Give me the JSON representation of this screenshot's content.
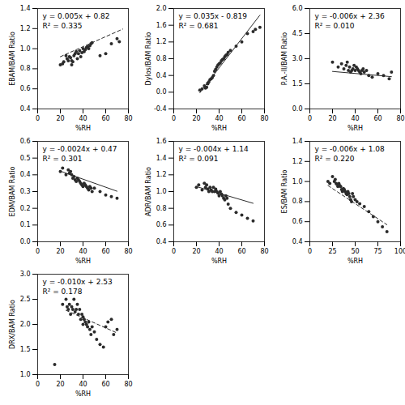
{
  "chart_data": [
    {
      "type": "scatter",
      "xlabel": "%RH",
      "ylabel": "EBAM/BAM Ratio",
      "grid": false,
      "annotations": [
        "y = 0.005x + 0.82",
        "R² = 0.335"
      ],
      "xlim": [
        0,
        80
      ],
      "ylim": [
        0.4,
        1.4
      ],
      "xticks": [
        0,
        20,
        40,
        60,
        80
      ],
      "yticks": [
        0.4,
        0.6,
        0.8,
        {
          "value": 1.0,
          "label": "1.0"
        },
        1.2,
        1.4
      ],
      "series": [
        {
          "type": "scatter",
          "color": "#2b2b2b",
          "marker": "circle",
          "x": [
            20,
            22,
            23,
            25,
            26,
            27,
            28,
            29,
            30,
            30,
            31,
            32,
            33,
            34,
            35,
            36,
            37,
            38,
            39,
            40,
            41,
            42,
            43,
            44,
            45,
            46,
            47,
            48,
            55,
            60,
            65,
            70,
            72
          ],
          "values": [
            0.84,
            0.85,
            0.87,
            0.93,
            0.9,
            0.88,
            0.92,
            0.91,
            0.88,
            0.84,
            0.87,
            0.93,
            0.95,
            0.97,
            0.9,
            0.95,
            0.98,
            0.92,
            0.96,
            1.0,
            0.97,
            0.99,
            1.01,
            1.02,
            1.0,
            1.03,
            1.05,
            1.06,
            0.93,
            0.95,
            1.05,
            1.1,
            1.07
          ]
        },
        {
          "type": "line",
          "color": "#2b2b2b",
          "line_style": "dashed",
          "x": [
            20,
            75
          ],
          "values": [
            0.92,
            1.195
          ]
        }
      ]
    },
    {
      "type": "scatter",
      "xlabel": "%RH",
      "ylabel": "Dylos/BAM Ratio",
      "grid": false,
      "annotations": [
        "y = 0.035x - 0.819",
        "R² = 0.681"
      ],
      "xlim": [
        0,
        80
      ],
      "ylim": [
        -0.4,
        2.0
      ],
      "xticks": [
        0,
        20,
        40,
        60,
        80
      ],
      "yticks": [
        -0.4,
        {
          "value": 0.0,
          "label": "0.0"
        },
        0.4,
        0.8,
        1.2,
        1.6,
        {
          "value": 2.0,
          "label": "2.0"
        }
      ],
      "series": [
        {
          "type": "scatter",
          "color": "#2b2b2b",
          "marker": "circle",
          "x": [
            23,
            25,
            27,
            28,
            29,
            30,
            30,
            31,
            32,
            33,
            34,
            35,
            36,
            37,
            38,
            39,
            40,
            41,
            42,
            43,
            44,
            45,
            46,
            47,
            48,
            50,
            55,
            60,
            65,
            70,
            72,
            76
          ],
          "values": [
            0.05,
            0.08,
            0.15,
            0.1,
            0.12,
            0.2,
            0.22,
            0.25,
            0.3,
            0.32,
            0.35,
            0.4,
            0.5,
            0.55,
            0.6,
            0.65,
            0.68,
            0.7,
            0.75,
            0.78,
            0.8,
            0.85,
            0.88,
            0.9,
            0.95,
            1.0,
            1.1,
            1.2,
            1.4,
            1.45,
            1.5,
            1.55
          ]
        },
        {
          "type": "line",
          "color": "#2b2b2b",
          "line_style": "solid",
          "x": [
            23,
            76
          ],
          "values": [
            -0.014,
            1.841
          ]
        }
      ]
    },
    {
      "type": "scatter",
      "xlabel": "%RH",
      "ylabel": "P.A.-II/BAM Ratio",
      "grid": false,
      "annotations": [
        "y = -0.006x + 2.36",
        "R² = 0.010"
      ],
      "xlim": [
        0,
        80
      ],
      "ylim": [
        0.0,
        6.0
      ],
      "xticks": [
        0,
        20,
        40,
        60,
        80
      ],
      "yticks": [
        {
          "value": 0.0,
          "label": "0.0"
        },
        1.5,
        {
          "value": 3.0,
          "label": "3.0"
        },
        4.5,
        {
          "value": 6.0,
          "label": "6.0"
        }
      ],
      "series": [
        {
          "type": "scatter",
          "color": "#2b2b2b",
          "marker": "circle",
          "x": [
            20,
            25,
            28,
            30,
            32,
            33,
            34,
            35,
            36,
            37,
            38,
            39,
            40,
            41,
            42,
            43,
            44,
            45,
            46,
            47,
            48,
            50,
            52,
            55,
            60,
            65,
            70,
            72
          ],
          "values": [
            2.8,
            2.5,
            2.7,
            2.4,
            2.6,
            2.8,
            2.3,
            2.5,
            2.2,
            2.3,
            2.4,
            2.6,
            2.3,
            2.5,
            2.4,
            2.3,
            2.2,
            2.1,
            2.3,
            2.4,
            2.2,
            2.3,
            2.0,
            1.9,
            2.1,
            2.0,
            1.8,
            2.2
          ]
        },
        {
          "type": "line",
          "color": "#2b2b2b",
          "line_style": "solid",
          "x": [
            20,
            72
          ],
          "values": [
            2.24,
            1.928
          ]
        }
      ]
    },
    {
      "type": "scatter",
      "xlabel": "%RH",
      "ylabel": "EDM/BAM Ratio",
      "grid": false,
      "annotations": [
        "y = -0.0024x + 0.47",
        "R² = 0.301"
      ],
      "xlim": [
        0,
        80
      ],
      "ylim": [
        0.0,
        0.6
      ],
      "xticks": [
        0,
        20,
        40,
        60,
        80
      ],
      "yticks": [
        {
          "value": 0.0,
          "label": "0.0"
        },
        0.1,
        0.2,
        0.3,
        0.4,
        0.5,
        0.6
      ],
      "series": [
        {
          "type": "scatter",
          "color": "#2b2b2b",
          "marker": "circle",
          "x": [
            20,
            22,
            25,
            27,
            28,
            29,
            30,
            31,
            32,
            33,
            34,
            35,
            36,
            37,
            38,
            39,
            40,
            41,
            42,
            43,
            44,
            45,
            46,
            47,
            48,
            50,
            55,
            60,
            65,
            70
          ],
          "values": [
            0.42,
            0.44,
            0.4,
            0.43,
            0.41,
            0.42,
            0.4,
            0.38,
            0.39,
            0.37,
            0.36,
            0.38,
            0.37,
            0.36,
            0.35,
            0.34,
            0.33,
            0.35,
            0.34,
            0.33,
            0.32,
            0.31,
            0.33,
            0.32,
            0.3,
            0.32,
            0.3,
            0.28,
            0.27,
            0.26
          ]
        },
        {
          "type": "line",
          "color": "#2b2b2b",
          "line_style": "solid",
          "x": [
            20,
            70
          ],
          "values": [
            0.422,
            0.302
          ]
        }
      ]
    },
    {
      "type": "scatter",
      "xlabel": "%RH",
      "ylabel": "ADR/BAM Ratio",
      "grid": false,
      "annotations": [
        "y = -0.004x + 1.14",
        "R² = 0.091"
      ],
      "xlim": [
        0,
        80
      ],
      "ylim": [
        0.4,
        1.6
      ],
      "xticks": [
        0,
        20,
        40,
        60,
        80
      ],
      "yticks": [
        0.4,
        0.6,
        0.8,
        {
          "value": 1.0,
          "label": "1.0"
        },
        1.2,
        1.4,
        1.6
      ],
      "series": [
        {
          "type": "scatter",
          "color": "#2b2b2b",
          "marker": "circle",
          "x": [
            20,
            22,
            25,
            27,
            28,
            29,
            30,
            31,
            32,
            33,
            34,
            35,
            36,
            37,
            38,
            39,
            40,
            41,
            42,
            43,
            44,
            45,
            46,
            47,
            48,
            50,
            55,
            60,
            65,
            70
          ],
          "values": [
            1.05,
            1.08,
            1.02,
            1.1,
            1.05,
            1.08,
            1.03,
            1.0,
            1.05,
            1.02,
            1.0,
            1.05,
            1.0,
            1.03,
            1.0,
            0.98,
            0.95,
            1.0,
            0.97,
            0.95,
            0.92,
            0.9,
            0.95,
            0.92,
            0.85,
            0.8,
            0.75,
            0.72,
            0.68,
            0.65
          ]
        },
        {
          "type": "line",
          "color": "#2b2b2b",
          "line_style": "solid",
          "x": [
            20,
            70
          ],
          "values": [
            1.06,
            0.86
          ]
        }
      ]
    },
    {
      "type": "scatter",
      "xlabel": "%RH",
      "ylabel": "ES/BAM Ratio",
      "grid": false,
      "annotations": [
        "y = -0.006x + 1.08",
        "R² = 0.220"
      ],
      "xlim": [
        0,
        100
      ],
      "ylim": [
        0.4,
        1.4
      ],
      "xticks": [
        0,
        25,
        50,
        75,
        100
      ],
      "yticks": [
        0.4,
        0.6,
        0.8,
        {
          "value": 1.0,
          "label": "1.0"
        },
        1.2,
        1.4
      ],
      "series": [
        {
          "type": "scatter",
          "color": "#2b2b2b",
          "marker": "circle",
          "x": [
            20,
            22,
            25,
            27,
            28,
            29,
            30,
            31,
            32,
            33,
            34,
            35,
            36,
            37,
            38,
            39,
            40,
            41,
            42,
            43,
            44,
            45,
            46,
            47,
            48,
            50,
            52,
            55,
            60,
            65,
            70,
            75,
            80,
            85
          ],
          "values": [
            1.0,
            0.98,
            1.05,
            1.0,
            1.02,
            0.98,
            0.97,
            0.95,
            0.98,
            0.96,
            0.95,
            0.92,
            0.9,
            0.93,
            0.92,
            0.9,
            0.88,
            0.87,
            0.9,
            0.88,
            0.85,
            0.82,
            0.8,
            0.88,
            0.85,
            0.82,
            0.8,
            0.78,
            0.75,
            0.7,
            0.65,
            0.6,
            0.55,
            0.5
          ]
        },
        {
          "type": "line",
          "color": "#2b2b2b",
          "line_style": "dashed",
          "x": [
            20,
            85
          ],
          "values": [
            0.96,
            0.57
          ]
        }
      ]
    },
    {
      "type": "scatter",
      "xlabel": "%RH",
      "ylabel": "DRX/BAM Ratio",
      "grid": false,
      "annotations": [
        "y = -0.010x + 2.53",
        "R² = 0.178"
      ],
      "xlim": [
        0,
        80
      ],
      "ylim": [
        1.0,
        3.0
      ],
      "xticks": [
        0,
        20,
        40,
        60,
        80
      ],
      "yticks": [
        {
          "value": 1.0,
          "label": "1.0"
        },
        1.5,
        {
          "value": 2.0,
          "label": "2.0"
        },
        2.5,
        {
          "value": 3.0,
          "label": "3.0"
        }
      ],
      "series": [
        {
          "type": "scatter",
          "color": "#2b2b2b",
          "marker": "circle",
          "x": [
            15,
            22,
            25,
            26,
            27,
            28,
            29,
            30,
            31,
            32,
            33,
            34,
            35,
            36,
            37,
            38,
            39,
            40,
            40,
            41,
            42,
            43,
            44,
            45,
            46,
            47,
            48,
            50,
            52,
            55,
            58,
            60,
            62,
            65,
            67,
            70
          ],
          "values": [
            1.2,
            2.4,
            2.5,
            2.35,
            2.3,
            2.4,
            2.2,
            2.35,
            2.3,
            2.5,
            2.25,
            2.3,
            2.4,
            2.2,
            2.3,
            2.1,
            2.2,
            2.15,
            2.0,
            2.1,
            2.05,
            2.0,
            1.95,
            2.05,
            1.9,
            1.8,
            1.95,
            1.85,
            1.7,
            1.6,
            1.55,
            1.95,
            2.05,
            2.1,
            1.8,
            1.9
          ]
        },
        {
          "type": "line",
          "color": "#2b2b2b",
          "line_style": "dashed",
          "x": [
            25,
            70
          ],
          "values": [
            2.28,
            1.83
          ]
        }
      ]
    }
  ]
}
